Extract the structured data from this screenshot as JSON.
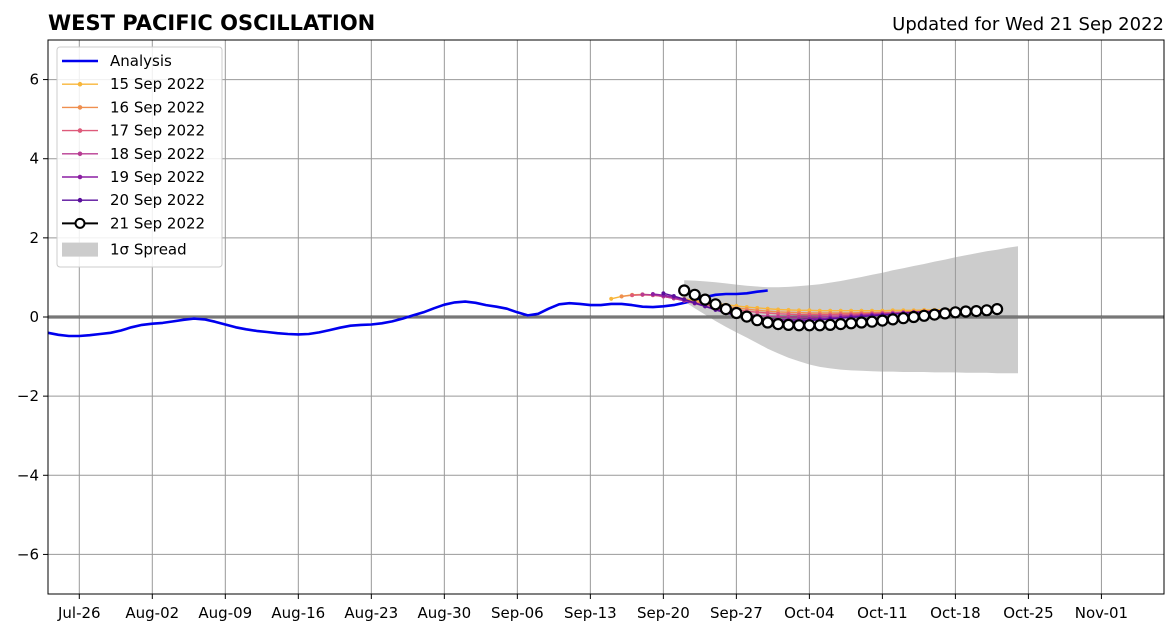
{
  "chart_data": {
    "type": "line",
    "title": "WEST PACIFIC OSCILLATION",
    "subtitle": "Updated for Wed 21 Sep 2022",
    "xlabel": "",
    "ylabel": "",
    "xlim": [
      "2022-07-23",
      "2022-11-07"
    ],
    "ylim": [
      -7,
      7
    ],
    "x_ticks": [
      {
        "date": "2022-07-26",
        "label": "Jul-26"
      },
      {
        "date": "2022-08-02",
        "label": "Aug-02"
      },
      {
        "date": "2022-08-09",
        "label": "Aug-09"
      },
      {
        "date": "2022-08-16",
        "label": "Aug-16"
      },
      {
        "date": "2022-08-23",
        "label": "Aug-23"
      },
      {
        "date": "2022-08-30",
        "label": "Aug-30"
      },
      {
        "date": "2022-09-06",
        "label": "Sep-06"
      },
      {
        "date": "2022-09-13",
        "label": "Sep-13"
      },
      {
        "date": "2022-09-20",
        "label": "Sep-20"
      },
      {
        "date": "2022-09-27",
        "label": "Sep-27"
      },
      {
        "date": "2022-10-04",
        "label": "Oct-04"
      },
      {
        "date": "2022-10-11",
        "label": "Oct-11"
      },
      {
        "date": "2022-10-18",
        "label": "Oct-18"
      },
      {
        "date": "2022-10-25",
        "label": "Oct-25"
      },
      {
        "date": "2022-11-01",
        "label": "Nov-01"
      }
    ],
    "y_ticks": [
      {
        "value": 6,
        "label": "6"
      },
      {
        "value": 4,
        "label": "4"
      },
      {
        "value": 2,
        "label": "2"
      },
      {
        "value": 0,
        "label": "0"
      },
      {
        "value": -2,
        "label": "−2"
      },
      {
        "value": -4,
        "label": "−4"
      },
      {
        "value": -6,
        "label": "−6"
      }
    ],
    "grid": true,
    "zero_line": true,
    "legend_position": "upper-left",
    "analysis": {
      "name": "Analysis",
      "color": "#0000ee",
      "start": "2022-07-23",
      "values": [
        -0.4,
        -0.45,
        -0.48,
        -0.48,
        -0.46,
        -0.43,
        -0.4,
        -0.34,
        -0.26,
        -0.2,
        -0.17,
        -0.15,
        -0.11,
        -0.07,
        -0.04,
        -0.06,
        -0.12,
        -0.19,
        -0.26,
        -0.31,
        -0.35,
        -0.38,
        -0.41,
        -0.43,
        -0.44,
        -0.43,
        -0.39,
        -0.33,
        -0.27,
        -0.22,
        -0.2,
        -0.19,
        -0.16,
        -0.11,
        -0.04,
        0.04,
        0.12,
        0.22,
        0.31,
        0.37,
        0.39,
        0.36,
        0.3,
        0.26,
        0.21,
        0.12,
        0.04,
        0.08,
        0.21,
        0.32,
        0.35,
        0.33,
        0.3,
        0.3,
        0.33,
        0.33,
        0.3,
        0.26,
        0.25,
        0.27,
        0.3,
        0.36,
        0.42,
        0.5,
        0.56,
        0.58,
        0.58,
        0.6,
        0.64,
        0.67
      ]
    },
    "forecasts": [
      {
        "name": "15 Sep 2022",
        "color": "#f8b63a",
        "start": "2022-09-15",
        "values": [
          0.46,
          0.52,
          0.56,
          0.57,
          0.56,
          0.54,
          0.5,
          0.46,
          0.42,
          0.38,
          0.34,
          0.31,
          0.28,
          0.25,
          0.23,
          0.21,
          0.19,
          0.18,
          0.17,
          0.17,
          0.16,
          0.16,
          0.16,
          0.16,
          0.16,
          0.16,
          0.16,
          0.17,
          0.17,
          0.17,
          0.18,
          0.18,
          0.19,
          0.19,
          0.2,
          0.2
        ]
      },
      {
        "name": "16 Sep 2022",
        "color": "#ef8f4f",
        "start": "2022-09-16",
        "values": [
          0.52,
          0.55,
          0.56,
          0.55,
          0.52,
          0.48,
          0.43,
          0.38,
          0.34,
          0.3,
          0.26,
          0.23,
          0.2,
          0.17,
          0.15,
          0.13,
          0.12,
          0.11,
          0.1,
          0.1,
          0.1,
          0.1,
          0.1,
          0.11,
          0.11,
          0.12,
          0.12,
          0.13,
          0.14,
          0.15,
          0.16,
          0.17,
          0.18,
          0.19,
          0.2
        ]
      },
      {
        "name": "17 Sep 2022",
        "color": "#de5a7a",
        "start": "2022-09-17",
        "values": [
          0.55,
          0.56,
          0.55,
          0.52,
          0.47,
          0.42,
          0.36,
          0.31,
          0.26,
          0.22,
          0.18,
          0.15,
          0.12,
          0.1,
          0.08,
          0.07,
          0.06,
          0.06,
          0.06,
          0.06,
          0.07,
          0.07,
          0.08,
          0.09,
          0.1,
          0.11,
          0.12,
          0.13,
          0.14,
          0.15,
          0.17,
          0.18,
          0.19,
          0.2
        ]
      },
      {
        "name": "18 Sep 2022",
        "color": "#b83c93",
        "start": "2022-09-18",
        "values": [
          0.57,
          0.56,
          0.52,
          0.47,
          0.41,
          0.34,
          0.27,
          0.21,
          0.16,
          0.11,
          0.07,
          0.04,
          0.02,
          0.01,
          0.0,
          0.0,
          0.0,
          0.01,
          0.02,
          0.03,
          0.04,
          0.05,
          0.07,
          0.08,
          0.09,
          0.11,
          0.12,
          0.14,
          0.15,
          0.17,
          0.18,
          0.2,
          0.21
        ]
      },
      {
        "name": "19 Sep 2022",
        "color": "#8c1fa3",
        "start": "2022-09-19",
        "values": [
          0.58,
          0.55,
          0.5,
          0.43,
          0.35,
          0.27,
          0.19,
          0.12,
          0.06,
          0.01,
          -0.03,
          -0.05,
          -0.06,
          -0.06,
          -0.06,
          -0.05,
          -0.04,
          -0.02,
          -0.01,
          0.01,
          0.03,
          0.05,
          0.06,
          0.08,
          0.1,
          0.11,
          0.13,
          0.15,
          0.16,
          0.18,
          0.19,
          0.21
        ]
      },
      {
        "name": "20 Sep 2022",
        "color": "#5a0f9c",
        "start": "2022-09-20",
        "values": [
          0.6,
          0.53,
          0.45,
          0.36,
          0.27,
          0.18,
          0.1,
          0.03,
          -0.02,
          -0.06,
          -0.09,
          -0.1,
          -0.1,
          -0.1,
          -0.09,
          -0.07,
          -0.05,
          -0.03,
          -0.01,
          0.01,
          0.03,
          0.05,
          0.07,
          0.09,
          0.11,
          0.13,
          0.15,
          0.17,
          0.18,
          0.2,
          0.21
        ]
      },
      {
        "name": "21 Sep 2022",
        "color": "#000000",
        "start": "2022-09-22",
        "values": [
          0.67,
          0.56,
          0.44,
          0.32,
          0.2,
          0.1,
          0.01,
          -0.08,
          -0.14,
          -0.18,
          -0.2,
          -0.21,
          -0.21,
          -0.21,
          -0.2,
          -0.18,
          -0.16,
          -0.14,
          -0.12,
          -0.09,
          -0.06,
          -0.03,
          0.0,
          0.03,
          0.06,
          0.09,
          0.12,
          0.14,
          0.15,
          0.17,
          0.2
        ]
      }
    ],
    "spread": {
      "name": "1σ Spread",
      "color": "#cccccc",
      "start": "2022-09-22",
      "upper": [
        0.93,
        0.92,
        0.9,
        0.88,
        0.85,
        0.82,
        0.79,
        0.77,
        0.75,
        0.75,
        0.76,
        0.78,
        0.8,
        0.83,
        0.87,
        0.91,
        0.96,
        1.01,
        1.07,
        1.12,
        1.18,
        1.23,
        1.29,
        1.34,
        1.4,
        1.45,
        1.51,
        1.56,
        1.61,
        1.66,
        1.7,
        1.75,
        1.79
      ],
      "lower": [
        0.4,
        0.22,
        0.06,
        -0.1,
        -0.25,
        -0.39,
        -0.52,
        -0.66,
        -0.8,
        -0.92,
        -1.03,
        -1.12,
        -1.2,
        -1.26,
        -1.3,
        -1.33,
        -1.35,
        -1.36,
        -1.37,
        -1.38,
        -1.38,
        -1.39,
        -1.39,
        -1.39,
        -1.4,
        -1.4,
        -1.4,
        -1.41,
        -1.41,
        -1.41,
        -1.42,
        -1.42,
        -1.42
      ]
    }
  }
}
